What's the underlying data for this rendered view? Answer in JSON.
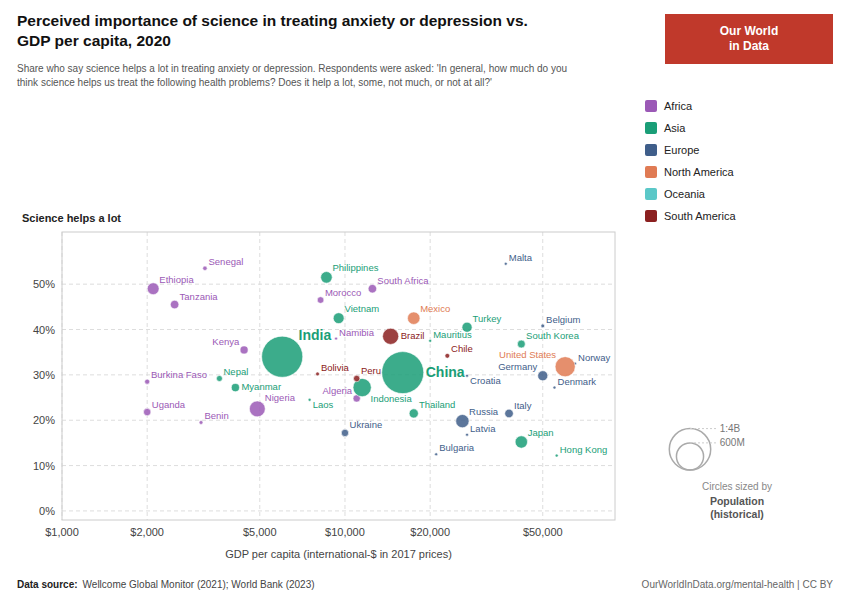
{
  "chart_data": {
    "type": "scatter",
    "title": "Perceived importance of science in treating anxiety or depression vs.\nGDP per capita, 2020",
    "subtitle": "Share who say science helps a lot in treating anxiety or depression. Respondents were asked: 'In general, how much do you\nthink science helps us treat the following health problems? Does it help a lot, some, not much, or not at all?'",
    "ylabel": "Science helps a lot",
    "xlabel": "GDP per capita (international-$ in 2017 prices)",
    "source_label": "Data source:",
    "source": "Wellcome Global Monitor (2021); World Bank (2023)",
    "credit": "OurWorldInData.org/mental-health | CC BY",
    "logo": "Our World\nin Data",
    "log": "x",
    "grid": true,
    "legend": "right",
    "xlim": [
      1000,
      90000
    ],
    "ylim": [
      -0.02,
      0.615
    ],
    "xticks": [
      {
        "value": 1000,
        "label": "$1,000"
      },
      {
        "value": 2000,
        "label": "$2,000"
      },
      {
        "value": 5000,
        "label": "$5,000"
      },
      {
        "value": 10000,
        "label": "$10,000"
      },
      {
        "value": 20000,
        "label": "$20,000"
      },
      {
        "value": 50000,
        "label": "$50,000"
      }
    ],
    "yticks": [
      {
        "value": 0,
        "label": "0%"
      },
      {
        "value": 0.1,
        "label": "10%"
      },
      {
        "value": 0.2,
        "label": "20%"
      },
      {
        "value": 0.3,
        "label": "30%"
      },
      {
        "value": 0.4,
        "label": "40%"
      },
      {
        "value": 0.5,
        "label": "50%"
      }
    ],
    "series": [
      {
        "name": "Africa",
        "color": "#9B59B6",
        "labels": [
          "Senegal",
          "Ethiopia",
          "Tanzania",
          "Morocco",
          "South Africa",
          "Namibia",
          "Burkina Faso",
          "Nigeria",
          "Uganda",
          "Benin",
          "Kenya",
          "Algeria"
        ],
        "x": [
          3200,
          2100,
          2500,
          8200,
          12500,
          9300,
          2000,
          4900,
          2000,
          3100,
          4400,
          11000
        ],
        "values": [
          0.535,
          0.49,
          0.455,
          0.465,
          0.49,
          0.38,
          0.285,
          0.225,
          0.218,
          0.195,
          0.355,
          0.248
        ],
        "sizes": [
          16000000,
          115000000,
          59000000,
          36000000,
          59000000,
          2500000,
          21000000,
          206000000,
          45000000,
          12000000,
          53000000,
          44000000
        ]
      },
      {
        "name": "Asia",
        "color": "#1A9E77",
        "labels": [
          "Philippines",
          "Vietnam",
          "India",
          "China",
          "Indonesia",
          "Nepal",
          "Myanmar",
          "Thailand",
          "South Korea",
          "Turkey",
          "Mauritius",
          "Hong Kong",
          "Japan",
          "Laos"
        ],
        "x": [
          8600,
          9500,
          6000,
          16000,
          11500,
          3600,
          4100,
          17500,
          42000,
          27000,
          20000,
          56000,
          42000,
          7500
        ],
        "values": [
          0.515,
          0.425,
          0.34,
          0.305,
          0.272,
          0.292,
          0.272,
          0.215,
          0.368,
          0.405,
          0.375,
          0.122,
          0.152,
          0.245
        ],
        "sizes": [
          109000000,
          97000000,
          1380000000,
          1440000000,
          273000000,
          29000000,
          54000000,
          69000000,
          51000000,
          84000000,
          1265000,
          7500000,
          125000000,
          7000000
        ]
      },
      {
        "name": "Europe",
        "color": "#3F5E8A",
        "labels": [
          "Ukraine",
          "Bulgaria",
          "Latvia",
          "Russia",
          "Italy",
          "Croatia",
          "Denmark",
          "Germany",
          "Norway",
          "Belgium",
          "Malta"
        ],
        "x": [
          10000,
          21000,
          27000,
          26000,
          38000,
          27000,
          55000,
          50000,
          65000,
          50000,
          37000
        ],
        "values": [
          0.172,
          0.125,
          0.168,
          0.198,
          0.215,
          0.298,
          0.272,
          0.298,
          0.325,
          0.408,
          0.545
        ],
        "sizes": [
          44000000,
          7000000,
          1900000,
          144000000,
          60000000,
          4000000,
          5800000,
          83000000,
          5400000,
          11500000,
          514000
        ]
      },
      {
        "name": "North America",
        "color": "#E07B54",
        "labels": [
          "Mexico",
          "United States"
        ],
        "x": [
          17500,
          60000
        ],
        "values": [
          0.425,
          0.318
        ],
        "sizes": [
          128000000,
          331000000
        ]
      },
      {
        "name": "Oceania",
        "color": "#5BC8C8",
        "labels": [],
        "x": [],
        "values": [],
        "sizes": []
      },
      {
        "name": "South America",
        "color": "#8B2020",
        "labels": [
          "Bolivia",
          "Peru",
          "Brazil",
          "Chile"
        ],
        "x": [
          8000,
          11000,
          14500,
          23000
        ],
        "values": [
          0.302,
          0.292,
          0.385,
          0.342
        ],
        "sizes": [
          11700000,
          33000000,
          213000000,
          19000000
        ]
      }
    ],
    "size_legend": {
      "title": "Circles sized by",
      "label": "Population\n(historical)",
      "values": [
        1400000000,
        600000000
      ],
      "value_labels": [
        "1:4B",
        "600M"
      ]
    }
  }
}
